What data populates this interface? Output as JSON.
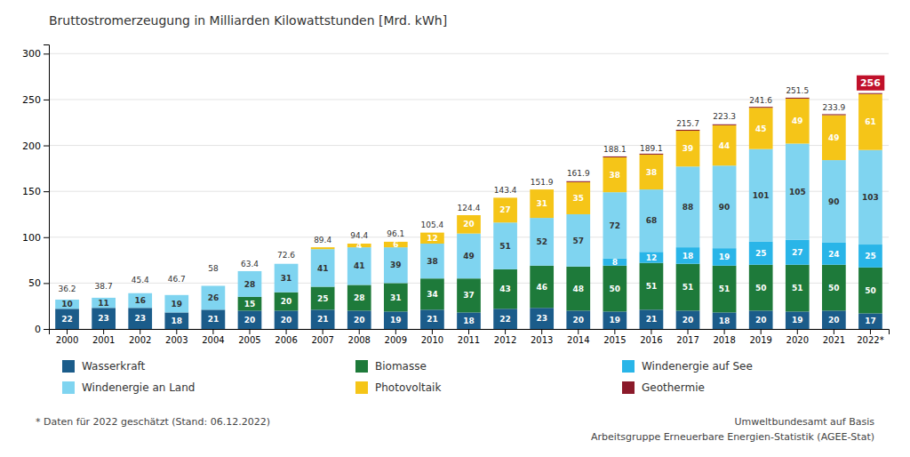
{
  "chart_data": {
    "type": "bar",
    "stacked": true,
    "title": "Bruttostromerzeugung in Milliarden Kilowattstunden [Mrd. kWh]",
    "categories": [
      "2000",
      "2001",
      "2002",
      "2003",
      "2004",
      "2005",
      "2006",
      "2007",
      "2008",
      "2009",
      "2010",
      "2011",
      "2012",
      "2013",
      "2014",
      "2015",
      "2016",
      "2017",
      "2018",
      "2019",
      "2020",
      "2021",
      "2022*"
    ],
    "series": [
      {
        "name": "Wasserkraft",
        "color": "#1b5c8a",
        "data_labels": true,
        "values": [
          22,
          23,
          23,
          18,
          21,
          20,
          20,
          21,
          20,
          19,
          21,
          18,
          22,
          23,
          20,
          19,
          21,
          20,
          18,
          20,
          19,
          20,
          17
        ],
        "value_labels": [
          "22",
          "23",
          "23",
          "18",
          "21",
          "20",
          "20",
          "21",
          "20",
          "19",
          "21",
          "18",
          "22",
          "23",
          "20",
          "19",
          "21",
          "20",
          "18",
          "20",
          "19",
          "20",
          "17"
        ]
      },
      {
        "name": "Biomasse",
        "color": "#1e7a3a",
        "data_labels": true,
        "values": [
          0,
          0,
          0,
          0,
          0,
          15,
          20,
          25,
          28,
          31,
          34,
          37,
          43,
          46,
          48,
          50,
          51,
          51,
          51,
          50,
          51,
          50,
          50
        ],
        "value_labels": [
          null,
          null,
          null,
          null,
          null,
          "15",
          "20",
          "25",
          "28",
          "31",
          "34",
          "37",
          "43",
          "46",
          "48",
          "50",
          "51",
          "51",
          "51",
          "50",
          "51",
          "50",
          "50"
        ]
      },
      {
        "name": "Windenergie auf See",
        "color": "#29b5e8",
        "data_labels": true,
        "values": [
          0,
          0,
          0,
          0,
          0,
          0,
          0,
          0,
          0,
          0,
          0,
          0,
          0,
          0,
          0,
          8,
          12,
          18,
          19,
          25,
          27,
          24,
          25
        ],
        "value_labels": [
          null,
          null,
          null,
          null,
          null,
          null,
          null,
          null,
          null,
          null,
          null,
          null,
          null,
          null,
          null,
          "8",
          "12",
          "18",
          "19",
          "25",
          "27",
          "24",
          "25"
        ]
      },
      {
        "name": "Windenergie an Land",
        "color": "#7fd4f0",
        "data_labels": true,
        "values": [
          10,
          11,
          16,
          19,
          26,
          28,
          31,
          41,
          41,
          39,
          38,
          49,
          51,
          52,
          57,
          72,
          68,
          88,
          90,
          101,
          105,
          90,
          103
        ],
        "value_labels": [
          "10",
          "11",
          "16",
          "19",
          "26",
          "28",
          "31",
          "41",
          "41",
          "39",
          "38",
          "49",
          "51",
          "52",
          "57",
          "72",
          "68",
          "88",
          "90",
          "101",
          "105",
          "90",
          "103"
        ]
      },
      {
        "name": "Photovoltaik",
        "color": "#f5c518",
        "data_labels": true,
        "values": [
          0,
          0,
          0,
          0,
          0,
          0,
          0,
          2,
          4,
          6,
          12,
          20,
          27,
          31,
          35,
          38,
          38,
          39,
          44,
          45,
          49,
          49,
          61
        ],
        "value_labels": [
          null,
          null,
          null,
          null,
          null,
          null,
          null,
          null,
          "4",
          "6",
          "12",
          "20",
          "27",
          "31",
          "35",
          "38",
          "38",
          "39",
          "44",
          "45",
          "49",
          "49",
          "61"
        ]
      },
      {
        "name": "Geothermie",
        "color": "#8b1a2a",
        "data_labels": false,
        "values": [
          0,
          0,
          0,
          0,
          0,
          0,
          0,
          0,
          0,
          0,
          0,
          0,
          0,
          0,
          1,
          1,
          1,
          1,
          1,
          1,
          1,
          1,
          1
        ]
      }
    ],
    "totals": {
      "values": [
        36.2,
        38.7,
        45.4,
        46.7,
        58.0,
        63.4,
        72.6,
        89.4,
        94.4,
        96.1,
        105.4,
        124.4,
        143.4,
        151.9,
        161.9,
        188.1,
        189.1,
        215.7,
        223.3,
        241.6,
        251.5,
        233.9,
        256
      ],
      "colors": [
        null,
        null,
        null,
        null,
        null,
        null,
        null,
        null,
        null,
        null,
        null,
        null,
        null,
        null,
        null,
        null,
        null,
        null,
        null,
        null,
        null,
        null,
        "#c0102a"
      ]
    },
    "ylim": [
      0,
      310
    ],
    "yticks": [
      0,
      50,
      100,
      150,
      200,
      250,
      300
    ],
    "grid": true,
    "legend": "bottom",
    "annotations": [
      "* Daten für 2022 geschätzt (Stand: 06.12.2022)",
      "Umweltbundesamt auf Basis",
      "Arbeitsgruppe Erneuerbare Energien-Statistik (AGEE-Stat)"
    ]
  }
}
